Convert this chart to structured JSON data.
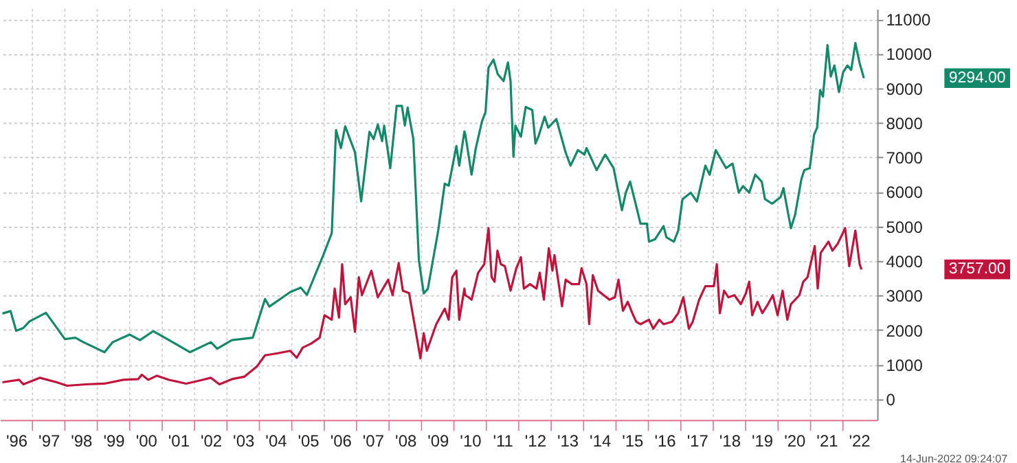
{
  "chart_data": {
    "type": "line",
    "series": [
      {
        "color": "#13896a",
        "x": [
          "1996-01-28",
          "1996-04-29",
          "1996-07-01",
          "1996-09-20",
          "1996-11-28",
          "1997-06-02",
          "1998-01-01",
          "1998-04-29",
          "1998-07-29",
          "1999-03-23",
          "1999-06-23",
          "2000-01-01",
          "2000-04-26",
          "2000-09-23",
          "2001-03-20",
          "2001-11-10",
          "2002-07-04",
          "2002-09-13",
          "2003-02-25",
          "2003-10-19",
          "2004-03-05",
          "2004-04-22",
          "2004-12-13",
          "2005-04-11",
          "2005-06-20",
          "2005-12-23",
          "2006-03-27",
          "2006-05-14",
          "2006-07-08",
          "2006-08-25",
          "2006-12-13",
          "2007-02-21",
          "2007-05-25",
          "2007-07-11",
          "2007-08-28",
          "2007-10-15",
          "2007-11-07",
          "2008-01-15",
          "2008-03-27",
          "2008-05-25",
          "2008-06-27",
          "2008-07-29",
          "2008-10-01",
          "2008-12-02",
          "2009-01-26",
          "2009-03-13",
          "2009-07-08",
          "2009-09-20",
          "2009-11-03",
          "2010-01-29",
          "2010-03-02",
          "2010-04-29",
          "2010-05-10",
          "2010-07-19",
          "2010-09-05",
          "2010-11-14",
          "2010-12-23",
          "2011-01-26",
          "2011-03-23",
          "2011-05-10",
          "2011-07-15",
          "2011-09-02",
          "2011-10-01",
          "2011-11-03",
          "2011-11-25",
          "2012-01-26",
          "2012-03-20",
          "2012-06-02",
          "2012-07-08",
          "2012-08-10",
          "2012-10-19",
          "2012-11-28",
          "2013-02-28",
          "2013-06-13",
          "2013-08-07",
          "2013-10-29",
          "2014-01-11",
          "2014-02-03",
          "2014-05-28",
          "2014-09-02",
          "2014-12-05",
          "2015-03-09",
          "2015-04-22",
          "2015-06-09",
          "2015-08-17",
          "2015-10-04",
          "2015-12-16",
          "2016-01-08",
          "2016-03-16",
          "2016-06-20",
          "2016-07-22",
          "2016-10-15",
          "2016-12-02",
          "2017-01-19",
          "2017-04-22",
          "2017-07-01",
          "2017-10-04",
          "2017-11-21",
          "2018-01-29",
          "2018-05-25",
          "2018-08-07",
          "2018-10-15",
          "2018-12-02",
          "2019-02-10",
          "2019-04-19",
          "2019-07-01",
          "2019-08-07",
          "2019-10-26",
          "2020-01-29",
          "2020-03-02",
          "2020-04-08",
          "2020-05-25",
          "2020-07-11",
          "2020-09-20",
          "2020-10-22",
          "2020-12-23",
          "2021-02-10",
          "2021-03-16",
          "2021-04-19",
          "2021-05-21",
          "2021-07-11",
          "2021-08-17",
          "2021-09-27",
          "2021-11-17",
          "2022-01-04",
          "2022-02-21",
          "2022-04-04",
          "2022-05-21",
          "2022-07-08",
          "2022-08-25"
        ],
        "values": [
          2480,
          2550,
          1980,
          2060,
          2250,
          2500,
          1740,
          1780,
          1650,
          1360,
          1650,
          1870,
          1710,
          1970,
          1710,
          1360,
          1650,
          1460,
          1710,
          1780,
          2900,
          2680,
          3100,
          3230,
          3020,
          4180,
          4810,
          7790,
          7270,
          7900,
          7150,
          5730,
          7740,
          7530,
          7950,
          7470,
          7920,
          6690,
          8490,
          8490,
          7920,
          8440,
          7530,
          4030,
          3060,
          3190,
          4880,
          6240,
          6180,
          7330,
          6760,
          7750,
          7660,
          6500,
          7270,
          8050,
          8310,
          9600,
          9830,
          9410,
          9210,
          9750,
          9210,
          7020,
          7920,
          7600,
          8460,
          8370,
          7400,
          7600,
          8180,
          7860,
          8110,
          7140,
          6760,
          7210,
          7080,
          7270,
          6630,
          7080,
          6690,
          5470,
          5980,
          6300,
          5590,
          5080,
          5080,
          4560,
          4630,
          5010,
          4690,
          4560,
          4880,
          5790,
          5980,
          5720,
          6760,
          6500,
          7210,
          6690,
          6820,
          5980,
          6170,
          5980,
          6500,
          6300,
          5790,
          5660,
          5850,
          6110,
          5590,
          4950,
          5340,
          6370,
          6630,
          6690,
          7660,
          7860,
          8950,
          8760,
          10250,
          9340,
          9660,
          8890,
          9470,
          9660,
          9530,
          10310,
          9730,
          9294
        ]
      },
      {
        "color": "#c0143c",
        "x": [
          "1996-01-28",
          "1996-08-03",
          "1996-09-20",
          "1997-03-23",
          "1997-10-01",
          "1998-01-26",
          "1998-08-25",
          "1999-03-23",
          "1999-10-22",
          "2000-04-04",
          "2000-05-17",
          "2000-07-29",
          "2000-11-03",
          "2001-03-20",
          "2001-09-27",
          "2002-04-01",
          "2002-07-04",
          "2002-10-08",
          "2003-02-25",
          "2003-07-15",
          "2003-12-02",
          "2004-03-05",
          "2004-07-26",
          "2004-12-13",
          "2005-02-25",
          "2005-05-03",
          "2005-08-07",
          "2005-11-10",
          "2006-01-04",
          "2006-03-27",
          "2006-04-29",
          "2006-06-16",
          "2006-07-22",
          "2006-08-25",
          "2006-10-26",
          "2006-12-13",
          "2007-01-26",
          "2007-03-02",
          "2007-06-16",
          "2007-08-28",
          "2007-12-23",
          "2008-02-10",
          "2008-04-19",
          "2008-06-05",
          "2008-08-14",
          "2008-12-20",
          "2009-01-26",
          "2009-03-02",
          "2009-06-16",
          "2009-09-20",
          "2009-11-03",
          "2009-12-13",
          "2010-01-29",
          "2010-03-02",
          "2010-04-29",
          "2010-05-10",
          "2010-06-16",
          "2010-07-19",
          "2010-10-01",
          "2010-12-09",
          "2011-01-26",
          "2011-03-02",
          "2011-04-04",
          "2011-05-07",
          "2011-06-13",
          "2011-07-29",
          "2011-10-01",
          "2011-12-05",
          "2012-01-26",
          "2012-02-28",
          "2012-05-07",
          "2012-07-19",
          "2012-08-25",
          "2012-10-11",
          "2012-12-05",
          "2013-01-15",
          "2013-02-07",
          "2013-05-03",
          "2013-06-13",
          "2013-08-21",
          "2013-11-10",
          "2013-12-09",
          "2014-02-03",
          "2014-03-05",
          "2014-04-15",
          "2014-06-13",
          "2014-08-17",
          "2014-10-19",
          "2014-12-20",
          "2015-01-29",
          "2015-03-20",
          "2015-05-14",
          "2015-07-04",
          "2015-08-17",
          "2015-10-04",
          "2016-01-08",
          "2016-02-25",
          "2016-05-03",
          "2016-06-20",
          "2016-09-23",
          "2016-12-02",
          "2017-01-29",
          "2017-04-01",
          "2017-05-14",
          "2017-07-26",
          "2017-10-04",
          "2018-01-08",
          "2018-02-10",
          "2018-03-16",
          "2018-05-03",
          "2018-06-20",
          "2018-08-28",
          "2018-11-07",
          "2019-01-04",
          "2019-02-10",
          "2019-03-16",
          "2019-05-14",
          "2019-07-08",
          "2019-09-09",
          "2019-11-03",
          "2019-12-27",
          "2020-02-21",
          "2020-04-15",
          "2020-05-25",
          "2020-08-28",
          "2020-10-11",
          "2020-11-28",
          "2021-02-17",
          "2021-03-23",
          "2021-04-26",
          "2021-07-22",
          "2021-09-05",
          "2021-11-03",
          "2022-01-26",
          "2022-03-13",
          "2022-05-21",
          "2022-07-08",
          "2022-07-29"
        ],
        "values": [
          490,
          560,
          430,
          620,
          490,
          390,
          430,
          450,
          560,
          580,
          710,
          560,
          680,
          560,
          450,
          560,
          620,
          430,
          580,
          650,
          940,
          1270,
          1330,
          1400,
          1200,
          1490,
          1610,
          1780,
          2430,
          2300,
          3200,
          2360,
          3910,
          2750,
          2950,
          1950,
          3530,
          3010,
          3720,
          2950,
          3460,
          3010,
          3940,
          3140,
          3070,
          1180,
          1910,
          1400,
          2170,
          2620,
          2300,
          3530,
          3720,
          2300,
          3200,
          3010,
          2950,
          2880,
          3660,
          3910,
          4950,
          3530,
          3400,
          4300,
          3910,
          3850,
          3140,
          3790,
          4110,
          3200,
          3330,
          3200,
          3660,
          2880,
          4370,
          3720,
          4170,
          2690,
          3460,
          3330,
          3330,
          3790,
          3330,
          2170,
          3590,
          3140,
          3010,
          2880,
          2950,
          3460,
          2560,
          2820,
          2490,
          2240,
          2170,
          2300,
          2040,
          2300,
          2170,
          2240,
          2490,
          2950,
          2040,
          2240,
          2880,
          3270,
          3270,
          3910,
          2490,
          3140,
          2950,
          3010,
          2750,
          3070,
          3400,
          2430,
          2820,
          2490,
          2750,
          3010,
          2430,
          3140,
          2300,
          2750,
          3010,
          3400,
          3530,
          4430,
          3200,
          4240,
          4560,
          4300,
          4500,
          4950,
          3850,
          4880,
          3910,
          3757
        ]
      }
    ],
    "xlim": [
      "1996-01-01",
      "2023-01-22"
    ],
    "xticks": [
      {
        "value": "1996-07-01",
        "label": "'96"
      },
      {
        "value": "1997-07-01",
        "label": "'97"
      },
      {
        "value": "1998-07-01",
        "label": "'98"
      },
      {
        "value": "1999-07-01",
        "label": "'99"
      },
      {
        "value": "2000-07-01",
        "label": "'00"
      },
      {
        "value": "2001-07-01",
        "label": "'01"
      },
      {
        "value": "2002-07-01",
        "label": "'02"
      },
      {
        "value": "2003-07-01",
        "label": "'03"
      },
      {
        "value": "2004-07-01",
        "label": "'04"
      },
      {
        "value": "2005-07-01",
        "label": "'05"
      },
      {
        "value": "2006-07-01",
        "label": "'06"
      },
      {
        "value": "2007-07-01",
        "label": "'07"
      },
      {
        "value": "2008-07-01",
        "label": "'08"
      },
      {
        "value": "2009-07-01",
        "label": "'09"
      },
      {
        "value": "2010-07-01",
        "label": "'10"
      },
      {
        "value": "2011-07-01",
        "label": "'11"
      },
      {
        "value": "2012-07-01",
        "label": "'12"
      },
      {
        "value": "2013-07-01",
        "label": "'13"
      },
      {
        "value": "2014-07-01",
        "label": "'14"
      },
      {
        "value": "2015-07-01",
        "label": "'15"
      },
      {
        "value": "2016-07-01",
        "label": "'16"
      },
      {
        "value": "2017-07-01",
        "label": "'17"
      },
      {
        "value": "2018-07-01",
        "label": "'18"
      },
      {
        "value": "2019-07-01",
        "label": "'19"
      },
      {
        "value": "2020-07-01",
        "label": "'20"
      },
      {
        "value": "2021-07-01",
        "label": "'21"
      },
      {
        "value": "2022-07-01",
        "label": "'22"
      },
      {
        "value": "1997-01-01",
        "label": null
      },
      {
        "value": "1998-01-01",
        "label": null
      },
      {
        "value": "1999-01-01",
        "label": null
      },
      {
        "value": "2000-01-01",
        "label": null
      },
      {
        "value": "2001-01-01",
        "label": null
      },
      {
        "value": "2002-01-01",
        "label": null
      },
      {
        "value": "2003-01-01",
        "label": null
      },
      {
        "value": "2004-01-01",
        "label": null
      },
      {
        "value": "2005-01-01",
        "label": null
      },
      {
        "value": "2006-01-01",
        "label": null
      },
      {
        "value": "2007-01-01",
        "label": null
      },
      {
        "value": "2008-01-01",
        "label": null
      },
      {
        "value": "2009-01-01",
        "label": null
      },
      {
        "value": "2010-01-01",
        "label": null
      },
      {
        "value": "2011-01-01",
        "label": null
      },
      {
        "value": "2012-01-01",
        "label": null
      },
      {
        "value": "2013-01-01",
        "label": null
      },
      {
        "value": "2014-01-01",
        "label": null
      },
      {
        "value": "2015-01-01",
        "label": null
      },
      {
        "value": "2016-01-01",
        "label": null
      },
      {
        "value": "2017-01-01",
        "label": null
      },
      {
        "value": "2018-01-01",
        "label": null
      },
      {
        "value": "2019-01-01",
        "label": null
      },
      {
        "value": "2020-01-01",
        "label": null
      },
      {
        "value": "2021-01-01",
        "label": null
      },
      {
        "value": "2022-01-01",
        "label": null
      }
    ],
    "ylim": [
      -600,
      11300
    ],
    "yticks": [
      0,
      1000,
      2000,
      3000,
      4000,
      5000,
      6000,
      7000,
      8000,
      9000,
      10000,
      11000
    ],
    "grid": true,
    "line_style": "solid",
    "marker": "none",
    "annotations": [
      "9294.00",
      "3757.00",
      "14-Jun-2022 09:24:07"
    ]
  }
}
